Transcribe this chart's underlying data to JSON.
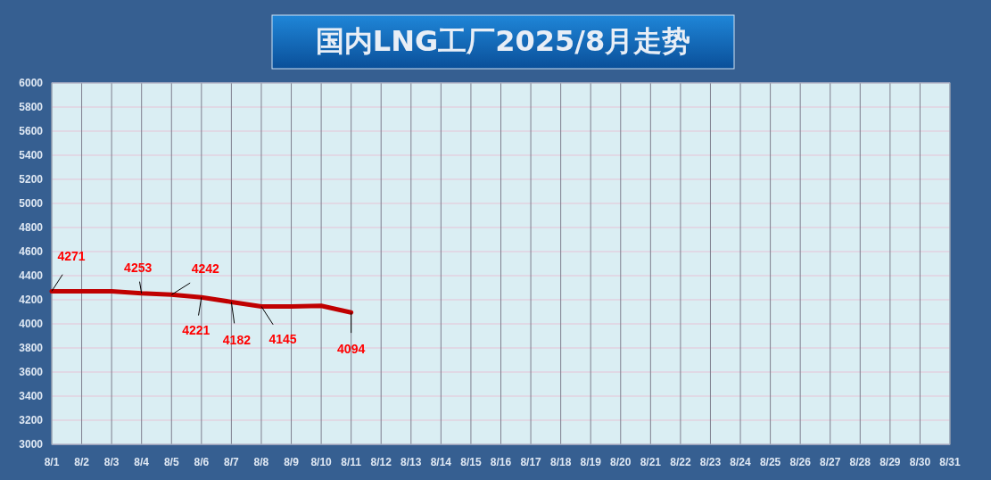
{
  "chart_data": {
    "type": "line",
    "title": "国内LNG工厂2025/8月走势",
    "categories": [
      "8/1",
      "8/2",
      "8/3",
      "8/4",
      "8/5",
      "8/6",
      "8/7",
      "8/8",
      "8/9",
      "8/10",
      "8/11",
      "8/12",
      "8/13",
      "8/14",
      "8/15",
      "8/16",
      "8/17",
      "8/18",
      "8/19",
      "8/20",
      "8/21",
      "8/22",
      "8/23",
      "8/24",
      "8/25",
      "8/26",
      "8/27",
      "8/28",
      "8/29",
      "8/30",
      "8/31"
    ],
    "series": [
      {
        "color": "#c00000",
        "values": [
          4271,
          4271,
          4271,
          4253,
          4242,
          4221,
          4182,
          4145,
          4145,
          4150,
          4094,
          null,
          null,
          null,
          null,
          null,
          null,
          null,
          null,
          null,
          null,
          null,
          null,
          null,
          null,
          null,
          null,
          null,
          null,
          null,
          null
        ],
        "value_labels": [
          "4271",
          null,
          null,
          "4253",
          "4242",
          "4221",
          "4182",
          "4145",
          null,
          null,
          "4094",
          null,
          null,
          null,
          null,
          null,
          null,
          null,
          null,
          null,
          null,
          null,
          null,
          null,
          null,
          null,
          null,
          null,
          null,
          null,
          null
        ]
      }
    ],
    "ylim": [
      3000,
      6000
    ],
    "yticks": [
      3000,
      3200,
      3400,
      3600,
      3800,
      4000,
      4200,
      4400,
      4600,
      4800,
      5000,
      5200,
      5400,
      5600,
      5800,
      6000
    ],
    "grid": true,
    "marker": "none",
    "line_style": "solid"
  }
}
